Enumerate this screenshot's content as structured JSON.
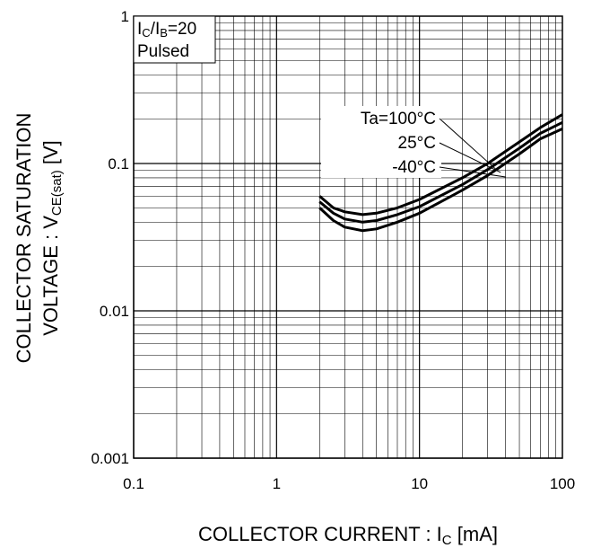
{
  "chart_data": {
    "type": "line",
    "xscale": "log",
    "yscale": "log",
    "xlim": [
      0.1,
      100
    ],
    "ylim": [
      0.001,
      1
    ],
    "grid": true,
    "xlabel": {
      "main": "COLLECTOR CURRENT : I",
      "sub": "C",
      "unit": " [mA]"
    },
    "ylabel": {
      "line1": "COLLECTOR SATURATION",
      "line2_main": "VOLTAGE : V",
      "line2_sub": "CE(sat)",
      "line2_unit": " [V]"
    },
    "x_ticks": [
      "0.1",
      "1",
      "10",
      "100"
    ],
    "y_ticks": [
      "1",
      "0.1",
      "0.01",
      "0.001"
    ],
    "conditions": {
      "ratio_i1": "I",
      "ratio_s1": "C",
      "ratio_mid": "/I",
      "ratio_s2": "B",
      "ratio_end": "=20",
      "mode": "Pulsed"
    },
    "series": [
      {
        "name": "Ta=100°C",
        "x": [
          2,
          2.5,
          3,
          4,
          5,
          7,
          10,
          20,
          30,
          50,
          70,
          100
        ],
        "y": [
          0.06,
          0.05,
          0.047,
          0.045,
          0.046,
          0.05,
          0.057,
          0.08,
          0.1,
          0.14,
          0.175,
          0.215
        ]
      },
      {
        "name": "25°C",
        "x": [
          2,
          2.5,
          3,
          4,
          5,
          7,
          10,
          20,
          30,
          50,
          70,
          100
        ],
        "y": [
          0.055,
          0.046,
          0.042,
          0.04,
          0.041,
          0.045,
          0.051,
          0.072,
          0.091,
          0.127,
          0.16,
          0.19
        ]
      },
      {
        "name": "-40°C",
        "x": [
          2,
          2.5,
          3,
          4,
          5,
          7,
          10,
          20,
          30,
          50,
          70,
          100
        ],
        "y": [
          0.05,
          0.041,
          0.037,
          0.035,
          0.036,
          0.04,
          0.046,
          0.066,
          0.083,
          0.116,
          0.147,
          0.172
        ]
      }
    ]
  }
}
